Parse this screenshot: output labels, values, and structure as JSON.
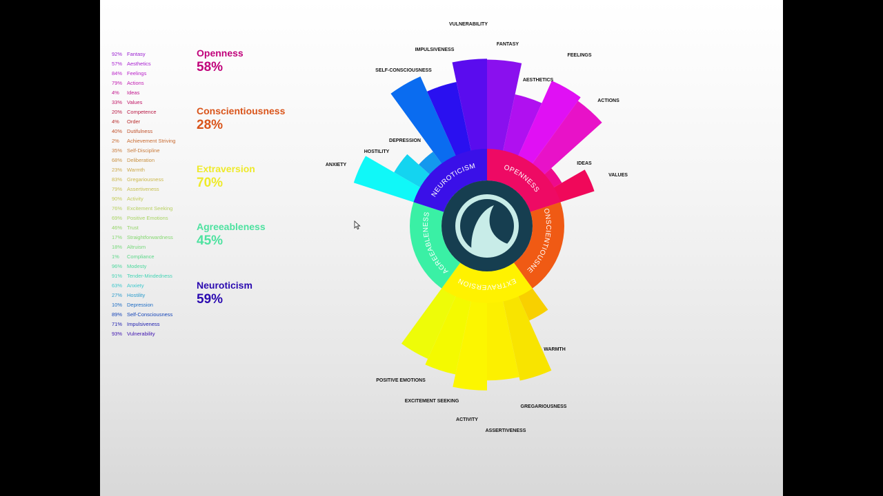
{
  "traits": [
    {
      "name": "Openness",
      "pct": "58%",
      "value": 58,
      "color": "#c0007a",
      "ring_color": "#ee0a64",
      "ring_label": "OPENNESS"
    },
    {
      "name": "Conscientiousness",
      "pct": "28%",
      "value": 28,
      "color": "#d9541a",
      "ring_color": "#f05a14",
      "ring_label": "CONSCIENTIOUSNESS"
    },
    {
      "name": "Extraversion",
      "pct": "70%",
      "value": 70,
      "color": "#eeea2a",
      "ring_color": "#fff200",
      "ring_label": "EXTRAVERSION"
    },
    {
      "name": "Agreeableness",
      "pct": "45%",
      "value": 45,
      "color": "#4ee2a0",
      "ring_color": "#3af0a5",
      "ring_label": "AGREEABLENESS"
    },
    {
      "name": "Neuroticism",
      "pct": "59%",
      "value": 59,
      "color": "#2a0ab0",
      "ring_color": "#3a10e8",
      "ring_label": "NEUROTICISM"
    }
  ],
  "facets": [
    {
      "pct": "92%",
      "name": "Fantasy",
      "value": 92,
      "color": "#9a1ed0",
      "bar_color": "#8a10ee",
      "label": "FANTASY",
      "trait": "Openness"
    },
    {
      "pct": "57%",
      "name": "Aesthetics",
      "value": 57,
      "color": "#a81ed0",
      "bar_color": "#b010f0",
      "label": "AESTHETICS",
      "trait": "Openness"
    },
    {
      "pct": "84%",
      "name": "Feelings",
      "value": 84,
      "color": "#b81ec8",
      "bar_color": "#e010f4",
      "label": "FEELINGS",
      "trait": "Openness"
    },
    {
      "pct": "79%",
      "name": "Actions",
      "value": 79,
      "color": "#c01ab0",
      "bar_color": "#e812c8",
      "label": "ACTIONS",
      "trait": "Openness"
    },
    {
      "pct": "4%",
      "name": "Ideas",
      "value": 4,
      "color": "#c0148c",
      "bar_color": "#ee0a8c",
      "label": "IDEAS",
      "trait": "Openness"
    },
    {
      "pct": "33%",
      "name": "Values",
      "value": 33,
      "color": "#c01464",
      "bar_color": "#f0085a",
      "label": "VALUES",
      "trait": "Openness"
    },
    {
      "pct": "20%",
      "name": "Competence",
      "value": 20,
      "color": "#b81844",
      "bar_color": "",
      "label": "",
      "trait": "Conscientiousness"
    },
    {
      "pct": "4%",
      "name": "Order",
      "value": 4,
      "color": "#b82c2c",
      "bar_color": "",
      "label": "",
      "trait": "Conscientiousness"
    },
    {
      "pct": "40%",
      "name": "Dutifulness",
      "value": 40,
      "color": "#c0502a",
      "bar_color": "",
      "label": "",
      "trait": "Conscientiousness"
    },
    {
      "pct": "2%",
      "name": "Achievement Striving",
      "value": 2,
      "color": "#c86a30",
      "bar_color": "",
      "label": "",
      "trait": "Conscientiousness"
    },
    {
      "pct": "35%",
      "name": "Self-Discipline",
      "value": 35,
      "color": "#c87a3a",
      "bar_color": "",
      "label": "",
      "trait": "Conscientiousness"
    },
    {
      "pct": "68%",
      "name": "Deliberation",
      "value": 68,
      "color": "#c89040",
      "bar_color": "",
      "label": "",
      "trait": "Conscientiousness"
    },
    {
      "pct": "23%",
      "name": "Warmth",
      "value": 23,
      "color": "#cca848",
      "bar_color": "#f8d000",
      "label": "WARMTH",
      "trait": "Extraversion"
    },
    {
      "pct": "83%",
      "name": "Gregariousness",
      "value": 83,
      "color": "#ccb84a",
      "bar_color": "#f8e400",
      "label": "GREGARIOUSNESS",
      "trait": "Extraversion"
    },
    {
      "pct": "79%",
      "name": "Assertiveness",
      "value": 79,
      "color": "#c8c050",
      "bar_color": "#fcf000",
      "label": "ASSERTIVENESS",
      "trait": "Extraversion"
    },
    {
      "pct": "90%",
      "name": "Activity",
      "value": 90,
      "color": "#c4cc58",
      "bar_color": "#fcf600",
      "label": "ACTIVITY",
      "trait": "Extraversion"
    },
    {
      "pct": "76%",
      "name": "Excitement Seeking",
      "value": 76,
      "color": "#b8d060",
      "bar_color": "#f4fa00",
      "label": "EXCITEMENT SEEKING",
      "trait": "Extraversion"
    },
    {
      "pct": "69%",
      "name": "Positive Emotions",
      "value": 69,
      "color": "#a8d464",
      "bar_color": "#eefc08",
      "label": "POSITIVE EMOTIONS",
      "trait": "Extraversion"
    },
    {
      "pct": "46%",
      "name": "Trust",
      "value": 46,
      "color": "#94d468",
      "bar_color": "",
      "label": "",
      "trait": "Agreeableness"
    },
    {
      "pct": "17%",
      "name": "Straightforwardness",
      "value": 17,
      "color": "#84d870",
      "bar_color": "",
      "label": "",
      "trait": "Agreeableness"
    },
    {
      "pct": "18%",
      "name": "Altruism",
      "value": 18,
      "color": "#74d878",
      "bar_color": "",
      "label": "",
      "trait": "Agreeableness"
    },
    {
      "pct": "1%",
      "name": "Compliance",
      "value": 1,
      "color": "#5cd888",
      "bar_color": "",
      "label": "",
      "trait": "Agreeableness"
    },
    {
      "pct": "96%",
      "name": "Modesty",
      "value": 96,
      "color": "#4cd89c",
      "bar_color": "",
      "label": "",
      "trait": "Agreeableness"
    },
    {
      "pct": "91%",
      "name": "Tender-Mindedness",
      "value": 91,
      "color": "#44d4b4",
      "bar_color": "",
      "label": "",
      "trait": "Agreeableness"
    },
    {
      "pct": "63%",
      "name": "Anxiety",
      "value": 63,
      "color": "#3cc8cc",
      "bar_color": "#10f8f8",
      "label": "ANXIETY",
      "trait": "Neuroticism"
    },
    {
      "pct": "27%",
      "name": "Hostility",
      "value": 27,
      "color": "#2c9ccc",
      "bar_color": "#14d4f0",
      "label": "HOSTILITY",
      "trait": "Neuroticism"
    },
    {
      "pct": "10%",
      "name": "Depression",
      "value": 10,
      "color": "#1c6cc4",
      "bar_color": "#1498ee",
      "label": "DEPRESSION",
      "trait": "Neuroticism"
    },
    {
      "pct": "89%",
      "name": "Self-Consciousness",
      "value": 89,
      "color": "#1444b8",
      "bar_color": "#0a6cf0",
      "label": "SELF-CONSCIOUSNESS",
      "trait": "Neuroticism"
    },
    {
      "pct": "71%",
      "name": "Impulsiveness",
      "value": 71,
      "color": "#2020b0",
      "bar_color": "#2a10f0",
      "label": "IMPULSIVENESS",
      "trait": "Neuroticism"
    },
    {
      "pct": "93%",
      "name": "Vulnerability",
      "value": 93,
      "color": "#3c10b0",
      "bar_color": "#5a0cee",
      "label": "VULNERABILITY",
      "trait": "Neuroticism"
    }
  ],
  "center_logo": {
    "outer_color": "#163e50",
    "inner_color": "#c8ece8"
  },
  "chart_data": {
    "type": "sunburst-radial-bar",
    "title": "",
    "inner_ring": {
      "categories": [
        "Openness",
        "Conscientiousness",
        "Extraversion",
        "Agreeableness",
        "Neuroticism"
      ],
      "values": [
        58,
        28,
        70,
        45,
        59
      ]
    },
    "categories": [
      "Fantasy",
      "Aesthetics",
      "Feelings",
      "Actions",
      "Ideas",
      "Values",
      "Competence",
      "Order",
      "Dutifulness",
      "Achievement Striving",
      "Self-Discipline",
      "Deliberation",
      "Warmth",
      "Gregariousness",
      "Assertiveness",
      "Activity",
      "Excitement Seeking",
      "Positive Emotions",
      "Trust",
      "Straightforwardness",
      "Altruism",
      "Compliance",
      "Modesty",
      "Tender-Mindedness",
      "Anxiety",
      "Hostility",
      "Depression",
      "Self-Consciousness",
      "Impulsiveness",
      "Vulnerability"
    ],
    "values": [
      92,
      57,
      84,
      79,
      4,
      33,
      20,
      4,
      40,
      2,
      35,
      68,
      23,
      83,
      79,
      90,
      76,
      69,
      46,
      17,
      18,
      1,
      96,
      91,
      63,
      27,
      10,
      89,
      71,
      93
    ],
    "unit": "%",
    "ylim": [
      0,
      100
    ]
  }
}
